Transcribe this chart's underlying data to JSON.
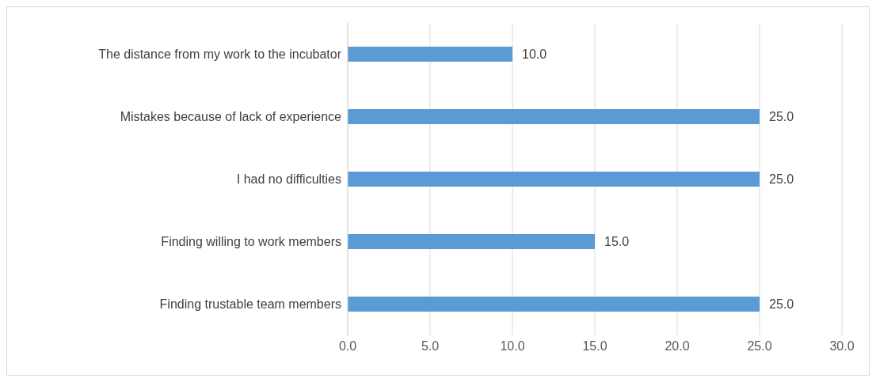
{
  "chart_data": {
    "type": "bar",
    "orientation": "horizontal",
    "categories": [
      "The distance from my work to the incubator",
      "Mistakes because of lack of experience",
      "I had no difficulties",
      "Finding willing to work members",
      "Finding trustable team members"
    ],
    "values": [
      10,
      25,
      25,
      15,
      25
    ],
    "value_labels": [
      "10.0",
      "25.0",
      "25.0",
      "15.0",
      "25.0"
    ],
    "color": "#5b9bd5",
    "xlim": [
      0,
      30
    ],
    "xticks": [
      {
        "value": 0,
        "label": "0.0"
      },
      {
        "value": 5,
        "label": "5.0"
      },
      {
        "value": 10,
        "label": "10.0"
      },
      {
        "value": 15,
        "label": "15.0"
      },
      {
        "value": 20,
        "label": "20.0"
      },
      {
        "value": 25,
        "label": "25.0"
      },
      {
        "value": 30,
        "label": "30.0"
      }
    ],
    "grid": "x"
  }
}
